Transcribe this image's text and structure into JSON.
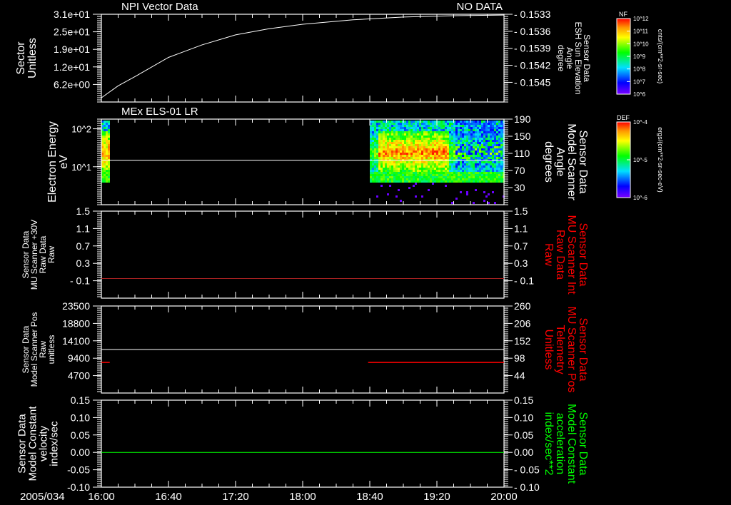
{
  "colors": {
    "background": "#000000",
    "axis": "#ffffff",
    "red": "#ff0000",
    "green": "#00ff00"
  },
  "time_axis": {
    "date_label": "2005/034",
    "tick_labels": [
      "16:00",
      "16:40",
      "17:20",
      "18:00",
      "18:40",
      "19:20",
      "20:00"
    ],
    "tick_minutes": [
      0,
      40,
      80,
      120,
      160,
      200,
      240
    ],
    "range_minutes": [
      0,
      240
    ]
  },
  "colorbars": [
    {
      "label": "NF",
      "tick_labels": [
        "10^12",
        "10^11",
        "10^10",
        "10^9",
        "10^8",
        "10^7",
        "10^6"
      ],
      "units": "cnts/(cm**2-sr-sec)"
    },
    {
      "label": "DEF",
      "tick_labels": [
        "10^-4",
        "10^-5",
        "10^-6"
      ],
      "units": "ergs/(cm**2-sr-sec-eV)"
    }
  ],
  "chart_data": [
    {
      "type": "line",
      "title": "NPI Vector Data",
      "status": "NO DATA",
      "ylabel": [
        "Sector",
        "Unitless"
      ],
      "ylim": [
        0,
        31
      ],
      "yticks": [
        31,
        25,
        19,
        12,
        6.2
      ],
      "ytick_labels": [
        "3.1e+01",
        "2.5e+01",
        "1.9e+01",
        "1.2e+01",
        "6.2e+00"
      ],
      "right_ylabel": [
        "Sensor Data",
        "ESH Sun Elevation",
        "Angle",
        "degree"
      ],
      "right_ytick_labels": [
        "- 0.1533",
        "- 0.1536",
        "- 0.1539",
        "- 0.1542",
        "- 0.1545"
      ],
      "series": [
        {
          "name": "Sector",
          "color": "#ffffff",
          "x": [
            0,
            10,
            20,
            40,
            60,
            80,
            100,
            120,
            150,
            180,
            210,
            240
          ],
          "y": [
            1.0,
            5.3,
            8.6,
            15.5,
            20.0,
            23.6,
            25.8,
            27.4,
            29.0,
            30.0,
            30.5,
            30.7
          ]
        }
      ]
    },
    {
      "type": "heatmap",
      "title": "MEx ELS-01 LR",
      "ylabel": [
        "Electron Energy",
        "eV"
      ],
      "yscale": "log",
      "ylim": [
        1,
        180
      ],
      "ytick_labels": [
        "10^2",
        "10^1"
      ],
      "yticks": [
        100,
        10
      ],
      "right_ylabel": [
        "Sensor Data",
        "Model Scanner",
        "Angle",
        "degrees"
      ],
      "right_ylim": [
        -10,
        190
      ],
      "right_yticks": [
        190,
        150,
        110,
        70,
        30
      ],
      "right_ytick_labels": [
        "190",
        "150",
        "110",
        "70",
        "30"
      ],
      "data_intervals_minutes": [
        [
          0,
          4
        ],
        [
          160,
          240
        ]
      ],
      "series": [
        {
          "name": "Model Scanner Angle",
          "color": "#ffffff",
          "x": [
            0,
            240
          ],
          "y_right": [
            94,
            94
          ]
        }
      ]
    },
    {
      "type": "line",
      "ylabel": [
        "Sensor Data",
        "MU Scanner +30V",
        "Raw Data",
        "Raw"
      ],
      "ylim": [
        -0.5,
        1.5
      ],
      "yticks": [
        1.5,
        1.1,
        0.7,
        0.3,
        -0.1
      ],
      "ytick_labels": [
        "1.5",
        "1.1",
        "0.7",
        "0.3",
        "- 0.1"
      ],
      "right_ylabel": [
        "Sensor Data",
        "MU Scanner Int",
        "Raw Data",
        "Raw"
      ],
      "right_ytick_labels": [
        "1.5",
        "1.1",
        "0.7",
        "0.3",
        "- 0.1"
      ],
      "series": [
        {
          "name": "MU Scanner +30V",
          "color": "#ff0000",
          "x": [
            0,
            240
          ],
          "y": [
            -0.05,
            -0.05
          ]
        }
      ]
    },
    {
      "type": "line",
      "ylabel": [
        "Sensor Data",
        "Model Scanner Pos",
        "Raw",
        "unitless"
      ],
      "ylim": [
        0,
        23500
      ],
      "yticks": [
        23500,
        18800,
        14100,
        9400,
        4700
      ],
      "ytick_labels": [
        "23500",
        "18800",
        "14100",
        "9400",
        "4700"
      ],
      "right_ylabel": [
        "Sensor Data",
        "MU Scanner Pos",
        "Telemetry",
        "Unitless"
      ],
      "right_ylim": [
        -10,
        260
      ],
      "right_yticks": [
        260,
        206,
        152,
        98,
        44
      ],
      "right_ytick_labels": [
        "260",
        "206",
        "152",
        "98",
        "44"
      ],
      "series": [
        {
          "name": "Model Scanner Pos",
          "color": "#ffffff",
          "x": [
            0,
            240
          ],
          "y": [
            11750,
            11750
          ]
        },
        {
          "name": "MU Scanner Pos Telemetry",
          "color": "#ff0000",
          "segments_minutes": [
            [
              0,
              5
            ],
            [
              159,
              240
            ]
          ],
          "y_right": 85
        }
      ]
    },
    {
      "type": "line",
      "ylabel": [
        "Sensor Data",
        "Model Constant",
        "velocity",
        "index/sec"
      ],
      "ylim": [
        -0.1,
        0.15
      ],
      "yticks": [
        0.15,
        0.1,
        0.05,
        0.0,
        -0.05,
        -0.1
      ],
      "ytick_labels": [
        "0.15",
        "0.10",
        "0.05",
        "0.00",
        "-0.05",
        "-0.10"
      ],
      "right_ylabel": [
        "Sensor Data",
        "Model Constant",
        "acceleration",
        "index/sec**2"
      ],
      "right_ytick_labels": [
        "0.15",
        "0.10",
        "0.05",
        "0.00",
        "- 0.05",
        "- 0.10"
      ],
      "series": [
        {
          "name": "Model Constant velocity",
          "color": "#00ff00",
          "x": [
            0,
            240
          ],
          "y": [
            0,
            0
          ]
        }
      ]
    }
  ]
}
